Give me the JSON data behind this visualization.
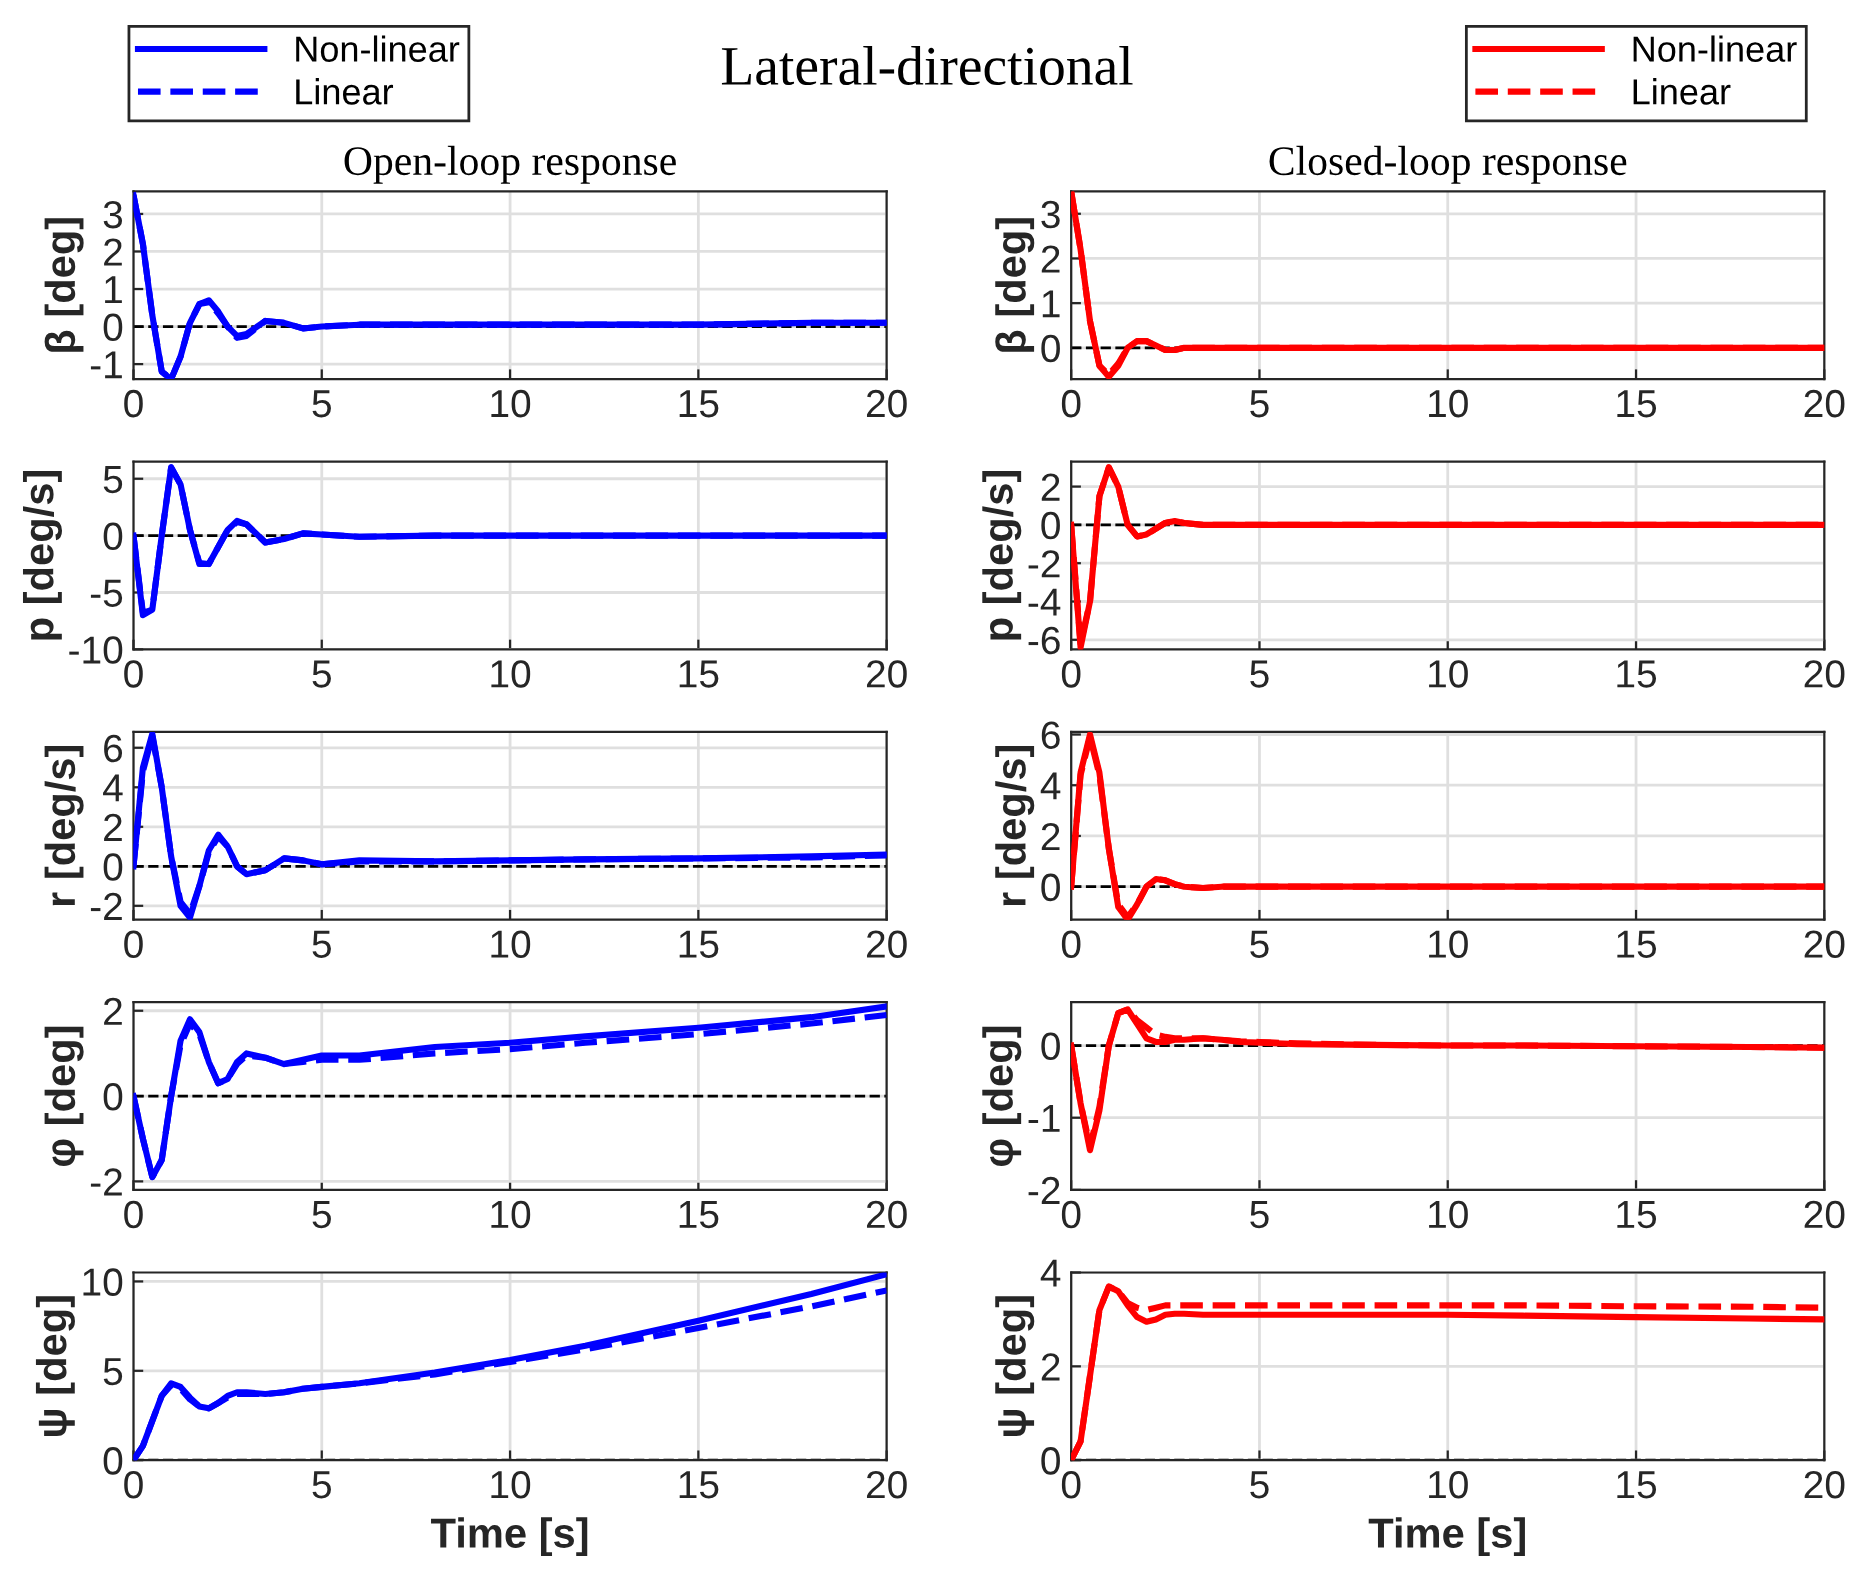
{
  "chart_data": [
    {
      "type": "line",
      "title": "Open-loop response",
      "annotations": [
        "Lateral-directional"
      ],
      "ylabel": "β [deg]",
      "xlim": [
        0,
        20
      ],
      "xticks": [
        0,
        5,
        10,
        15,
        20
      ],
      "ylim": [
        -1.4,
        3.6
      ],
      "yticks": [
        -1,
        0,
        1,
        2,
        3
      ],
      "grid": true,
      "legend": "top left",
      "ref_lines": [
        {
          "axis": "y",
          "value": 0,
          "color": "#000000",
          "line_style": "dashed"
        }
      ],
      "x": [
        0,
        0.25,
        0.5,
        0.75,
        1,
        1.25,
        1.5,
        1.75,
        2,
        2.25,
        2.5,
        2.75,
        3,
        3.5,
        4,
        4.5,
        5,
        6,
        8,
        10,
        12,
        15,
        18,
        20
      ],
      "series": [
        {
          "name": "Non-linear",
          "color": "#0000ff",
          "line_style": "solid",
          "values": [
            3.5,
            2.2,
            0.3,
            -1.2,
            -1.4,
            -0.8,
            0.1,
            0.6,
            0.7,
            0.4,
            0,
            -0.25,
            -0.2,
            0.15,
            0.1,
            -0.05,
            0,
            0.05,
            0.05,
            0.05,
            0.05,
            0.05,
            0.1,
            0.1
          ]
        },
        {
          "name": "Linear",
          "color": "#0000ff",
          "line_style": "dashed",
          "values": [
            3.5,
            2.2,
            0.3,
            -1.2,
            -1.4,
            -0.8,
            0.1,
            0.6,
            0.65,
            0.35,
            0,
            -0.3,
            -0.25,
            0.15,
            0.1,
            -0.05,
            0,
            0.05,
            0.05,
            0.05,
            0.05,
            0.05,
            0.1,
            0.1
          ]
        }
      ]
    },
    {
      "type": "line",
      "title": "Closed-loop response",
      "ylabel": "β [deg]",
      "xlim": [
        0,
        20
      ],
      "xticks": [
        0,
        5,
        10,
        15,
        20
      ],
      "ylim": [
        -0.7,
        3.5
      ],
      "yticks": [
        0,
        1,
        2,
        3
      ],
      "grid": true,
      "legend": "top right",
      "ref_lines": [
        {
          "axis": "y",
          "value": 0,
          "color": "#000000",
          "line_style": "dashed"
        }
      ],
      "x": [
        0,
        0.25,
        0.5,
        0.75,
        1,
        1.25,
        1.5,
        1.75,
        2,
        2.25,
        2.5,
        2.75,
        3,
        3.5,
        4,
        4.5,
        5,
        6,
        8,
        10,
        12,
        15,
        18,
        20
      ],
      "series": [
        {
          "name": "Non-linear",
          "color": "#ff0000",
          "line_style": "solid",
          "values": [
            3.5,
            2.2,
            0.6,
            -0.4,
            -0.65,
            -0.4,
            0,
            0.15,
            0.15,
            0.05,
            -0.05,
            -0.05,
            0,
            0,
            0,
            0,
            0,
            0,
            0,
            0,
            0,
            0,
            0,
            0
          ]
        },
        {
          "name": "Linear",
          "color": "#ff0000",
          "line_style": "dashed",
          "values": [
            3.5,
            2.2,
            0.6,
            -0.4,
            -0.6,
            -0.35,
            0,
            0.15,
            0.15,
            0.05,
            -0.05,
            -0.05,
            0,
            0,
            0,
            0,
            0,
            0,
            0,
            0,
            0,
            0,
            0,
            0
          ]
        }
      ]
    },
    {
      "type": "line",
      "ylabel": "p [deg/s]",
      "xlim": [
        0,
        20
      ],
      "xticks": [
        0,
        5,
        10,
        15,
        20
      ],
      "ylim": [
        -10,
        6.5
      ],
      "yticks": [
        -10,
        -5,
        0,
        5
      ],
      "grid": true,
      "ref_lines": [
        {
          "axis": "y",
          "value": 0,
          "color": "#000000",
          "line_style": "dashed"
        }
      ],
      "x": [
        0,
        0.25,
        0.5,
        0.75,
        1,
        1.25,
        1.5,
        1.75,
        2,
        2.25,
        2.5,
        2.75,
        3,
        3.5,
        4,
        4.5,
        5,
        6,
        8,
        10,
        12,
        15,
        18,
        20
      ],
      "series": [
        {
          "color": "#0000ff",
          "line_style": "solid",
          "values": [
            0,
            -7,
            -6.5,
            0,
            6,
            4.5,
            0.5,
            -2.5,
            -2.5,
            -1,
            0.5,
            1.3,
            1,
            -0.6,
            -0.3,
            0.2,
            0.1,
            -0.1,
            0,
            0,
            0,
            0,
            0,
            0
          ]
        },
        {
          "color": "#0000ff",
          "line_style": "dashed",
          "values": [
            0,
            -6.8,
            -6.5,
            0,
            6,
            4.5,
            0.5,
            -2.4,
            -2.5,
            -1,
            0.5,
            1.2,
            1,
            -0.6,
            -0.3,
            0.2,
            0.1,
            -0.1,
            0,
            0,
            0,
            0,
            0,
            0
          ]
        }
      ]
    },
    {
      "type": "line",
      "ylabel": "p [deg/s]",
      "xlim": [
        0,
        20
      ],
      "xticks": [
        0,
        5,
        10,
        15,
        20
      ],
      "ylim": [
        -6.5,
        3.3
      ],
      "yticks": [
        -6,
        -4,
        -2,
        0,
        2
      ],
      "grid": true,
      "ref_lines": [
        {
          "axis": "y",
          "value": 0,
          "color": "#000000",
          "line_style": "dashed"
        }
      ],
      "x": [
        0,
        0.25,
        0.5,
        0.75,
        1,
        1.25,
        1.5,
        1.75,
        2,
        2.25,
        2.5,
        2.75,
        3,
        3.5,
        4,
        4.5,
        5,
        6,
        8,
        10,
        12,
        15,
        18,
        20
      ],
      "series": [
        {
          "color": "#ff0000",
          "line_style": "solid",
          "values": [
            0,
            -6.4,
            -4,
            1.5,
            3,
            2,
            0,
            -0.6,
            -0.5,
            -0.2,
            0.1,
            0.2,
            0.1,
            0,
            0,
            0,
            0,
            0,
            0,
            0,
            0,
            0,
            0,
            0
          ]
        },
        {
          "color": "#ff0000",
          "line_style": "dashed",
          "values": [
            0,
            -6.2,
            -4,
            1.5,
            3,
            2,
            0,
            -0.6,
            -0.5,
            -0.2,
            0.1,
            0.2,
            0.1,
            0,
            0,
            0,
            0,
            0,
            0,
            0,
            0,
            0,
            0,
            0
          ]
        }
      ]
    },
    {
      "type": "line",
      "ylabel": "r [deg/s]",
      "xlim": [
        0,
        20
      ],
      "xticks": [
        0,
        5,
        10,
        15,
        20
      ],
      "ylim": [
        -2.7,
        6.8
      ],
      "yticks": [
        -2,
        0,
        2,
        4,
        6
      ],
      "grid": true,
      "ref_lines": [
        {
          "axis": "y",
          "value": 0,
          "color": "#000000",
          "line_style": "dashed"
        }
      ],
      "x": [
        0,
        0.25,
        0.5,
        0.75,
        1,
        1.25,
        1.5,
        1.75,
        2,
        2.25,
        2.5,
        2.75,
        3,
        3.5,
        4,
        4.5,
        5,
        6,
        8,
        10,
        12,
        15,
        18,
        20
      ],
      "series": [
        {
          "color": "#0000ff",
          "line_style": "solid",
          "values": [
            0,
            5,
            6.7,
            4,
            0.5,
            -2,
            -2.6,
            -1,
            0.8,
            1.6,
            1,
            0,
            -0.4,
            -0.2,
            0.4,
            0.3,
            0.1,
            0.3,
            0.25,
            0.3,
            0.35,
            0.4,
            0.5,
            0.6
          ]
        },
        {
          "color": "#0000ff",
          "line_style": "dashed",
          "values": [
            0,
            4.8,
            6.6,
            4,
            0.5,
            -1.8,
            -2.4,
            -1,
            0.7,
            1.5,
            1,
            0,
            -0.4,
            -0.2,
            0.4,
            0.3,
            0.1,
            0.25,
            0.25,
            0.3,
            0.35,
            0.4,
            0.45,
            0.55
          ]
        }
      ]
    },
    {
      "type": "line",
      "ylabel": "r [deg/s]",
      "xlim": [
        0,
        20
      ],
      "xticks": [
        0,
        5,
        10,
        15,
        20
      ],
      "ylim": [
        -1.3,
        6.1
      ],
      "yticks": [
        0,
        2,
        4,
        6
      ],
      "grid": true,
      "ref_lines": [
        {
          "axis": "y",
          "value": 0,
          "color": "#000000",
          "line_style": "dashed"
        }
      ],
      "x": [
        0,
        0.25,
        0.5,
        0.75,
        1,
        1.25,
        1.5,
        1.75,
        2,
        2.25,
        2.5,
        2.75,
        3,
        3.5,
        4,
        4.5,
        5,
        6,
        8,
        10,
        12,
        15,
        18,
        20
      ],
      "series": [
        {
          "color": "#ff0000",
          "line_style": "solid",
          "values": [
            0,
            4.5,
            6,
            4.5,
            1.5,
            -0.8,
            -1.3,
            -0.7,
            0,
            0.3,
            0.25,
            0.1,
            0,
            -0.05,
            0,
            0,
            0,
            0,
            0,
            0,
            0,
            0,
            0,
            0
          ]
        },
        {
          "color": "#ff0000",
          "line_style": "dashed",
          "values": [
            0,
            4.4,
            5.9,
            4.4,
            1.5,
            -0.7,
            -1.2,
            -0.7,
            0,
            0.3,
            0.25,
            0.1,
            0,
            -0.05,
            0,
            0,
            0,
            0,
            0,
            0,
            0,
            0,
            0,
            0
          ]
        }
      ]
    },
    {
      "type": "line",
      "ylabel": "φ [deg]",
      "xlim": [
        0,
        20
      ],
      "xticks": [
        0,
        5,
        10,
        15,
        20
      ],
      "ylim": [
        -2.2,
        2.2
      ],
      "yticks": [
        -2,
        0,
        2
      ],
      "grid": true,
      "ref_lines": [
        {
          "axis": "y",
          "value": 0,
          "color": "#000000",
          "line_style": "dashed"
        }
      ],
      "x": [
        0,
        0.25,
        0.5,
        0.75,
        1,
        1.25,
        1.5,
        1.75,
        2,
        2.25,
        2.5,
        2.75,
        3,
        3.5,
        4,
        4.5,
        5,
        6,
        8,
        10,
        12,
        15,
        18,
        20
      ],
      "series": [
        {
          "color": "#0000ff",
          "line_style": "solid",
          "values": [
            0,
            -1,
            -1.9,
            -1.5,
            0,
            1.3,
            1.8,
            1.5,
            0.8,
            0.3,
            0.4,
            0.8,
            1,
            0.9,
            0.75,
            0.85,
            0.95,
            0.95,
            1.15,
            1.25,
            1.4,
            1.6,
            1.85,
            2.1
          ]
        },
        {
          "color": "#0000ff",
          "line_style": "dashed",
          "values": [
            0,
            -1,
            -1.9,
            -1.5,
            0,
            1.2,
            1.7,
            1.45,
            0.8,
            0.3,
            0.4,
            0.75,
            0.95,
            0.9,
            0.75,
            0.8,
            0.85,
            0.85,
            1,
            1.1,
            1.25,
            1.45,
            1.7,
            1.9
          ]
        }
      ]
    },
    {
      "type": "line",
      "ylabel": "φ [deg]",
      "xlim": [
        0,
        20
      ],
      "xticks": [
        0,
        5,
        10,
        15,
        20
      ],
      "ylim": [
        -2,
        0.6
      ],
      "yticks": [
        -2,
        -1,
        0
      ],
      "grid": true,
      "ref_lines": [
        {
          "axis": "y",
          "value": 0,
          "color": "#000000",
          "line_style": "dashed"
        }
      ],
      "x": [
        0,
        0.25,
        0.5,
        0.75,
        1,
        1.25,
        1.5,
        1.75,
        2,
        2.25,
        2.5,
        2.75,
        3,
        3.5,
        4,
        4.5,
        5,
        6,
        8,
        10,
        12,
        15,
        18,
        20
      ],
      "series": [
        {
          "color": "#ff0000",
          "line_style": "solid",
          "values": [
            0,
            -0.8,
            -1.45,
            -0.9,
            0,
            0.45,
            0.5,
            0.3,
            0.1,
            0.05,
            0.05,
            0.08,
            0.08,
            0.1,
            0.08,
            0.05,
            0.04,
            0.02,
            0.01,
            0,
            0,
            -0.01,
            -0.02,
            -0.03
          ]
        },
        {
          "color": "#ff0000",
          "line_style": "dashed",
          "values": [
            0,
            -0.8,
            -1.4,
            -0.85,
            0,
            0.45,
            0.5,
            0.35,
            0.25,
            0.15,
            0.12,
            0.1,
            0.1,
            0.1,
            0.08,
            0.06,
            0.05,
            0.03,
            0.01,
            0,
            0,
            -0.01,
            -0.02,
            -0.03
          ]
        }
      ]
    },
    {
      "type": "line",
      "ylabel": "ψ [deg]",
      "xlabel": "Time [s]",
      "xlim": [
        0,
        20
      ],
      "xticks": [
        0,
        5,
        10,
        15,
        20
      ],
      "ylim": [
        0,
        10.5
      ],
      "yticks": [
        0,
        5,
        10
      ],
      "grid": true,
      "ref_lines": [
        {
          "axis": "y",
          "value": 0,
          "color": "#000000",
          "line_style": "dashed"
        }
      ],
      "x": [
        0,
        0.25,
        0.5,
        0.75,
        1,
        1.25,
        1.5,
        1.75,
        2,
        2.25,
        2.5,
        2.75,
        3,
        3.5,
        4,
        4.5,
        5,
        6,
        8,
        10,
        12,
        15,
        18,
        20
      ],
      "series": [
        {
          "color": "#0000ff",
          "line_style": "solid",
          "values": [
            0,
            0.8,
            2.2,
            3.6,
            4.3,
            4.1,
            3.5,
            3,
            2.9,
            3.2,
            3.6,
            3.8,
            3.8,
            3.7,
            3.8,
            4,
            4.1,
            4.3,
            4.9,
            5.6,
            6.4,
            7.8,
            9.3,
            10.4
          ]
        },
        {
          "color": "#0000ff",
          "line_style": "dashed",
          "values": [
            0,
            0.8,
            2.2,
            3.6,
            4.2,
            4,
            3.4,
            3,
            2.9,
            3.2,
            3.5,
            3.7,
            3.7,
            3.7,
            3.8,
            4,
            4.1,
            4.3,
            4.8,
            5.5,
            6.2,
            7.4,
            8.6,
            9.5
          ]
        }
      ]
    },
    {
      "type": "line",
      "ylabel": "ψ [deg]",
      "xlabel": "Time [s]",
      "xlim": [
        0,
        20
      ],
      "xticks": [
        0,
        5,
        10,
        15,
        20
      ],
      "ylim": [
        0,
        4
      ],
      "yticks": [
        0,
        2,
        4
      ],
      "grid": true,
      "ref_lines": [
        {
          "axis": "y",
          "value": 0,
          "color": "#000000",
          "line_style": "dashed"
        }
      ],
      "x": [
        0,
        0.25,
        0.5,
        0.75,
        1,
        1.25,
        1.5,
        1.75,
        2,
        2.25,
        2.5,
        2.75,
        3,
        3.5,
        4,
        4.5,
        5,
        6,
        8,
        10,
        12,
        15,
        18,
        20
      ],
      "series": [
        {
          "color": "#ff0000",
          "line_style": "solid",
          "values": [
            0,
            0.4,
            1.8,
            3.2,
            3.7,
            3.6,
            3.3,
            3.05,
            2.95,
            3,
            3.1,
            3.12,
            3.12,
            3.1,
            3.1,
            3.1,
            3.1,
            3.1,
            3.1,
            3.1,
            3.08,
            3.05,
            3.02,
            3
          ]
        },
        {
          "color": "#ff0000",
          "line_style": "dashed",
          "values": [
            0,
            0.4,
            1.8,
            3.2,
            3.7,
            3.6,
            3.35,
            3.25,
            3.2,
            3.25,
            3.3,
            3.3,
            3.3,
            3.3,
            3.3,
            3.3,
            3.3,
            3.3,
            3.3,
            3.3,
            3.3,
            3.28,
            3.27,
            3.25
          ]
        }
      ]
    }
  ]
}
